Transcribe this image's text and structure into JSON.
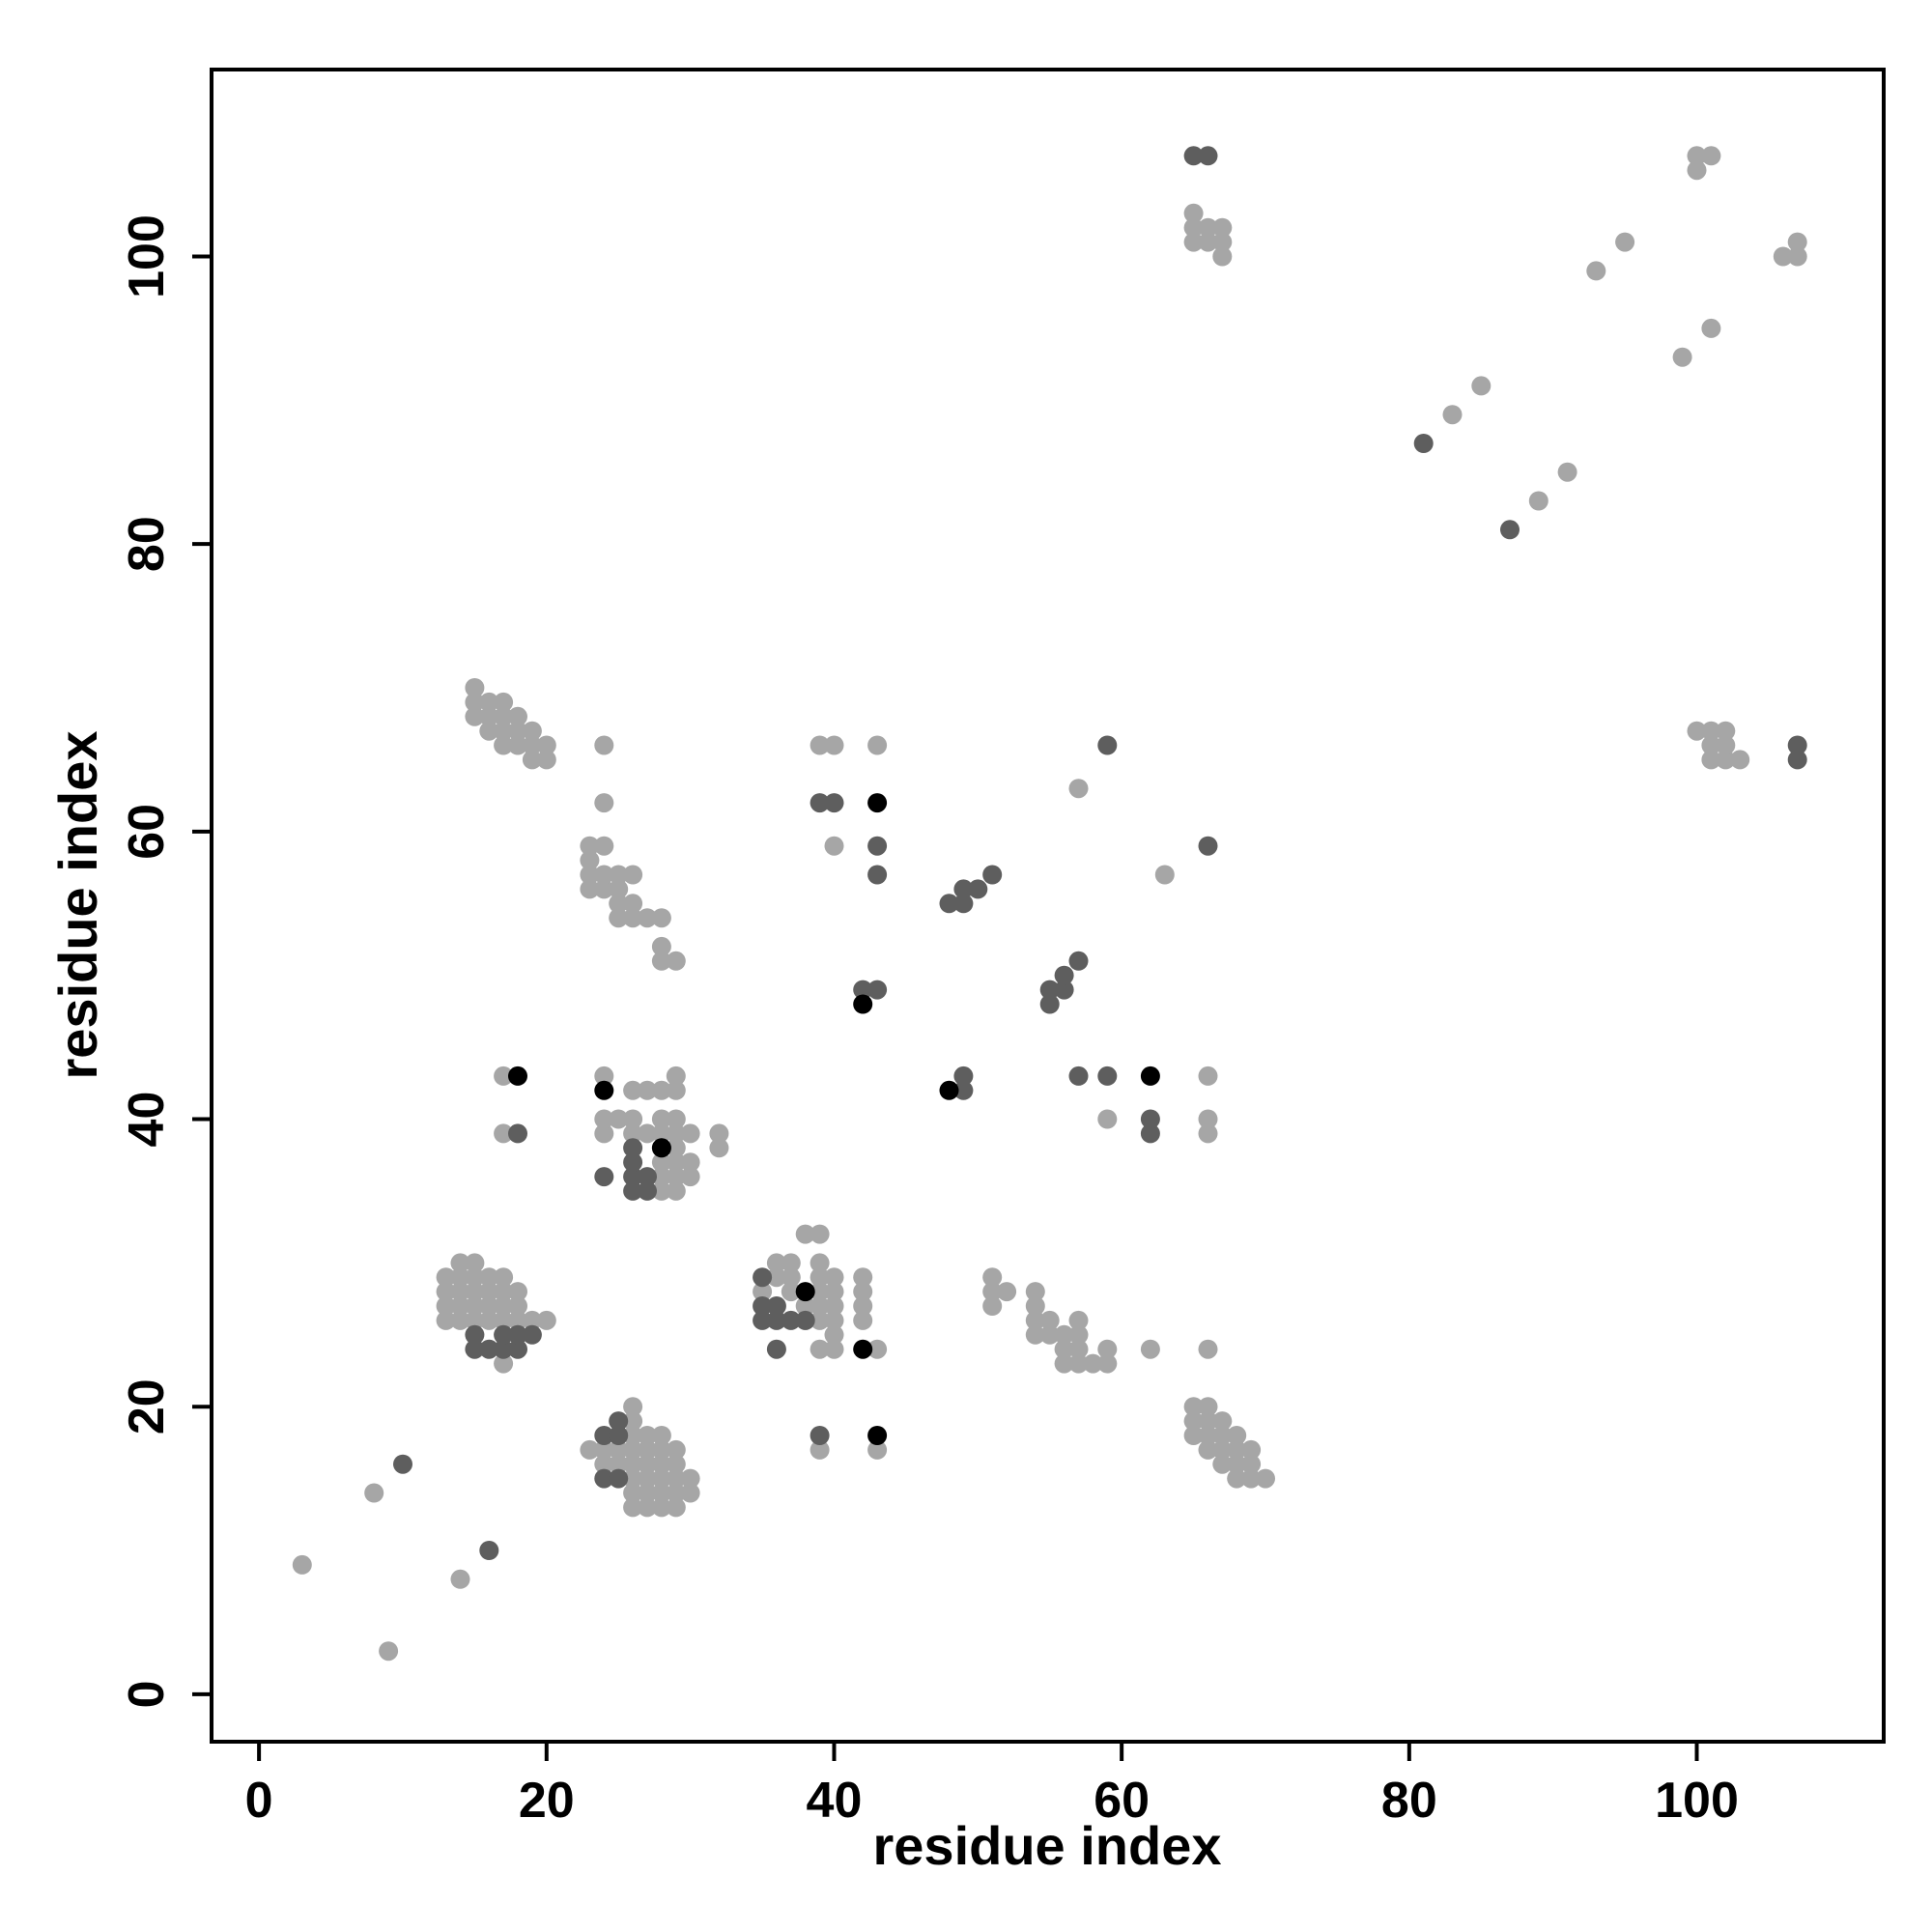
{
  "chart_data": {
    "type": "scatter",
    "title": "",
    "xlabel": "residue index",
    "ylabel": "residue index",
    "xlim": [
      -3.3,
      113.0
    ],
    "ylim": [
      -3.3,
      113.0
    ],
    "xticks": [
      0,
      20,
      40,
      60,
      80,
      100
    ],
    "yticks": [
      0,
      20,
      40,
      60,
      80,
      100
    ],
    "xtick_labels": [
      "0",
      "20",
      "40",
      "60",
      "80",
      "100"
    ],
    "ytick_labels": [
      "0",
      "20",
      "40",
      "60",
      "80",
      "100"
    ],
    "grid": false,
    "legend": "none",
    "colors": {
      "light": "#a6a6a6",
      "mid": "#5e5e5e",
      "dark": "#000000"
    },
    "series": [
      {
        "color_key": "light",
        "points": [
          [
            3,
            9
          ],
          [
            8,
            14
          ],
          [
            9,
            3
          ],
          [
            14,
            8
          ],
          [
            13,
            26
          ],
          [
            13,
            27
          ],
          [
            13,
            28
          ],
          [
            13,
            29
          ],
          [
            14,
            26
          ],
          [
            14,
            27
          ],
          [
            14,
            28
          ],
          [
            14,
            29
          ],
          [
            14,
            30
          ],
          [
            15,
            26
          ],
          [
            15,
            27
          ],
          [
            15,
            28
          ],
          [
            15,
            29
          ],
          [
            15,
            30
          ],
          [
            16,
            26
          ],
          [
            16,
            27
          ],
          [
            16,
            28
          ],
          [
            16,
            29
          ],
          [
            17,
            23
          ],
          [
            17,
            26
          ],
          [
            17,
            27
          ],
          [
            17,
            28
          ],
          [
            17,
            29
          ],
          [
            18,
            26
          ],
          [
            18,
            27
          ],
          [
            18,
            28
          ],
          [
            19,
            26
          ],
          [
            20,
            26
          ],
          [
            15,
            68
          ],
          [
            15,
            69
          ],
          [
            15,
            70
          ],
          [
            16,
            67
          ],
          [
            16,
            68
          ],
          [
            16,
            69
          ],
          [
            17,
            66
          ],
          [
            17,
            67
          ],
          [
            17,
            68
          ],
          [
            17,
            69
          ],
          [
            18,
            66
          ],
          [
            18,
            67
          ],
          [
            18,
            68
          ],
          [
            19,
            65
          ],
          [
            19,
            66
          ],
          [
            19,
            67
          ],
          [
            20,
            65
          ],
          [
            20,
            66
          ],
          [
            23,
            17
          ],
          [
            24,
            16
          ],
          [
            24,
            17
          ],
          [
            25,
            16
          ],
          [
            25,
            17
          ],
          [
            26,
            13
          ],
          [
            26,
            14
          ],
          [
            26,
            15
          ],
          [
            26,
            16
          ],
          [
            26,
            17
          ],
          [
            26,
            18
          ],
          [
            26,
            19
          ],
          [
            26,
            20
          ],
          [
            27,
            13
          ],
          [
            27,
            14
          ],
          [
            27,
            15
          ],
          [
            27,
            16
          ],
          [
            27,
            17
          ],
          [
            27,
            18
          ],
          [
            28,
            13
          ],
          [
            28,
            14
          ],
          [
            28,
            15
          ],
          [
            28,
            16
          ],
          [
            28,
            17
          ],
          [
            28,
            18
          ],
          [
            29,
            13
          ],
          [
            29,
            14
          ],
          [
            29,
            15
          ],
          [
            29,
            16
          ],
          [
            29,
            17
          ],
          [
            30,
            14
          ],
          [
            30,
            15
          ],
          [
            17,
            39
          ],
          [
            17,
            43
          ],
          [
            24,
            39
          ],
          [
            24,
            40
          ],
          [
            24,
            43
          ],
          [
            25,
            40
          ],
          [
            26,
            39
          ],
          [
            26,
            40
          ],
          [
            26,
            42
          ],
          [
            27,
            39
          ],
          [
            27,
            42
          ],
          [
            28,
            35
          ],
          [
            28,
            36
          ],
          [
            28,
            37
          ],
          [
            28,
            39
          ],
          [
            28,
            40
          ],
          [
            28,
            42
          ],
          [
            29,
            35
          ],
          [
            29,
            36
          ],
          [
            29,
            37
          ],
          [
            29,
            38
          ],
          [
            29,
            39
          ],
          [
            29,
            40
          ],
          [
            29,
            42
          ],
          [
            29,
            43
          ],
          [
            30,
            36
          ],
          [
            30,
            37
          ],
          [
            30,
            39
          ],
          [
            32,
            38
          ],
          [
            32,
            39
          ],
          [
            23,
            56
          ],
          [
            23,
            57
          ],
          [
            23,
            58
          ],
          [
            23,
            59
          ],
          [
            24,
            56
          ],
          [
            24,
            57
          ],
          [
            24,
            59
          ],
          [
            24,
            62
          ],
          [
            24,
            66
          ],
          [
            25,
            54
          ],
          [
            25,
            55
          ],
          [
            25,
            56
          ],
          [
            25,
            57
          ],
          [
            26,
            54
          ],
          [
            26,
            55
          ],
          [
            26,
            57
          ],
          [
            27,
            54
          ],
          [
            28,
            51
          ],
          [
            28,
            52
          ],
          [
            28,
            54
          ],
          [
            29,
            51
          ],
          [
            35,
            28
          ],
          [
            36,
            29
          ],
          [
            36,
            30
          ],
          [
            37,
            28
          ],
          [
            37,
            29
          ],
          [
            37,
            30
          ],
          [
            38,
            26
          ],
          [
            38,
            27
          ],
          [
            38,
            32
          ],
          [
            39,
            24
          ],
          [
            39,
            26
          ],
          [
            39,
            27
          ],
          [
            39,
            28
          ],
          [
            39,
            29
          ],
          [
            39,
            30
          ],
          [
            39,
            32
          ],
          [
            40,
            24
          ],
          [
            40,
            25
          ],
          [
            40,
            26
          ],
          [
            40,
            27
          ],
          [
            40,
            28
          ],
          [
            40,
            29
          ],
          [
            42,
            26
          ],
          [
            42,
            27
          ],
          [
            42,
            28
          ],
          [
            42,
            29
          ],
          [
            43,
            24
          ],
          [
            39,
            17
          ],
          [
            43,
            17
          ],
          [
            39,
            66
          ],
          [
            40,
            59
          ],
          [
            40,
            66
          ],
          [
            43,
            66
          ],
          [
            51,
            27
          ],
          [
            51,
            28
          ],
          [
            51,
            29
          ],
          [
            52,
            28
          ],
          [
            54,
            25
          ],
          [
            54,
            26
          ],
          [
            54,
            27
          ],
          [
            54,
            28
          ],
          [
            55,
            25
          ],
          [
            55,
            26
          ],
          [
            56,
            23
          ],
          [
            56,
            24
          ],
          [
            56,
            25
          ],
          [
            57,
            23
          ],
          [
            57,
            24
          ],
          [
            57,
            25
          ],
          [
            57,
            26
          ],
          [
            58,
            23
          ],
          [
            59,
            23
          ],
          [
            59,
            24
          ],
          [
            62,
            24
          ],
          [
            66,
            24
          ],
          [
            65,
            18
          ],
          [
            65,
            19
          ],
          [
            65,
            20
          ],
          [
            66,
            17
          ],
          [
            66,
            18
          ],
          [
            66,
            19
          ],
          [
            66,
            20
          ],
          [
            67,
            16
          ],
          [
            67,
            17
          ],
          [
            67,
            18
          ],
          [
            67,
            19
          ],
          [
            68,
            15
          ],
          [
            68,
            16
          ],
          [
            68,
            17
          ],
          [
            68,
            18
          ],
          [
            69,
            15
          ],
          [
            69,
            16
          ],
          [
            69,
            17
          ],
          [
            70,
            15
          ],
          [
            57,
            63
          ],
          [
            59,
            40
          ],
          [
            63,
            57
          ],
          [
            66,
            39
          ],
          [
            66,
            40
          ],
          [
            66,
            43
          ],
          [
            65,
            101
          ],
          [
            65,
            102
          ],
          [
            65,
            103
          ],
          [
            66,
            101
          ],
          [
            66,
            102
          ],
          [
            67,
            100
          ],
          [
            67,
            101
          ],
          [
            67,
            102
          ],
          [
            83,
            89
          ],
          [
            85,
            91
          ],
          [
            89,
            83
          ],
          [
            91,
            85
          ],
          [
            93,
            99
          ],
          [
            95,
            101
          ],
          [
            99,
            93
          ],
          [
            101,
            95
          ],
          [
            100,
            106
          ],
          [
            100,
            107
          ],
          [
            101,
            107
          ],
          [
            106,
            100
          ],
          [
            107,
            100
          ],
          [
            107,
            101
          ],
          [
            100,
            67
          ],
          [
            101,
            65
          ],
          [
            101,
            66
          ],
          [
            101,
            67
          ],
          [
            102,
            65
          ],
          [
            102,
            66
          ],
          [
            102,
            67
          ],
          [
            103,
            65
          ]
        ]
      },
      {
        "color_key": "mid",
        "points": [
          [
            10,
            16
          ],
          [
            16,
            10
          ],
          [
            15,
            24
          ],
          [
            15,
            25
          ],
          [
            16,
            24
          ],
          [
            17,
            24
          ],
          [
            17,
            25
          ],
          [
            18,
            24
          ],
          [
            18,
            25
          ],
          [
            19,
            25
          ],
          [
            24,
            15
          ],
          [
            24,
            18
          ],
          [
            25,
            15
          ],
          [
            25,
            18
          ],
          [
            25,
            19
          ],
          [
            18,
            39
          ],
          [
            24,
            36
          ],
          [
            26,
            35
          ],
          [
            26,
            36
          ],
          [
            26,
            37
          ],
          [
            26,
            38
          ],
          [
            27,
            35
          ],
          [
            27,
            36
          ],
          [
            28,
            38
          ],
          [
            35,
            26
          ],
          [
            35,
            27
          ],
          [
            35,
            29
          ],
          [
            36,
            24
          ],
          [
            36,
            26
          ],
          [
            36,
            27
          ],
          [
            37,
            26
          ],
          [
            38,
            26
          ],
          [
            39,
            18
          ],
          [
            39,
            62
          ],
          [
            40,
            62
          ],
          [
            43,
            57
          ],
          [
            43,
            59
          ],
          [
            42,
            49
          ],
          [
            43,
            49
          ],
          [
            48,
            55
          ],
          [
            49,
            55
          ],
          [
            49,
            56
          ],
          [
            50,
            56
          ],
          [
            51,
            57
          ],
          [
            49,
            42
          ],
          [
            49,
            43
          ],
          [
            55,
            48
          ],
          [
            55,
            49
          ],
          [
            56,
            49
          ],
          [
            56,
            50
          ],
          [
            57,
            51
          ],
          [
            57,
            43
          ],
          [
            59,
            43
          ],
          [
            59,
            66
          ],
          [
            62,
            39
          ],
          [
            62,
            40
          ],
          [
            66,
            59
          ],
          [
            65,
            107
          ],
          [
            66,
            107
          ],
          [
            81,
            87
          ],
          [
            87,
            81
          ],
          [
            107,
            65
          ],
          [
            107,
            66
          ]
        ]
      },
      {
        "color_key": "dark",
        "points": [
          [
            18,
            43
          ],
          [
            24,
            42
          ],
          [
            28,
            38
          ],
          [
            38,
            28
          ],
          [
            42,
            24
          ],
          [
            43,
            18
          ],
          [
            43,
            62
          ],
          [
            42,
            48
          ],
          [
            48,
            42
          ],
          [
            62,
            43
          ]
        ]
      }
    ]
  }
}
